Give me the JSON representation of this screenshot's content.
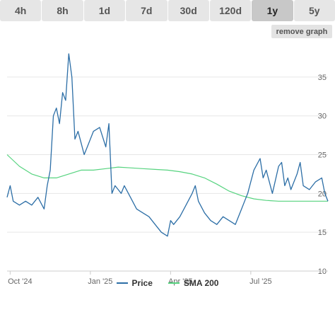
{
  "range_tabs": [
    "4h",
    "8h",
    "1d",
    "7d",
    "30d",
    "120d",
    "1y",
    "5y"
  ],
  "active_tab": "1y",
  "remove_graph_label": "remove graph",
  "colors": {
    "price": "#2c6ea6",
    "sma": "#56d37f",
    "grid": "#e6e6e6"
  },
  "chart_data": {
    "type": "line",
    "x_tick_labels": [
      "Oct '24",
      "Jan '25",
      "Apr '25",
      "Jul '25"
    ],
    "y_tick_labels": [
      "10",
      "15",
      "20",
      "25",
      "30",
      "35"
    ],
    "ylim": [
      10,
      39
    ],
    "xlim": [
      0,
      52
    ],
    "x_tick_weeks": [
      0.5,
      13.5,
      26.5,
      39.5
    ],
    "y_ticks": [
      10,
      15,
      20,
      25,
      30,
      35
    ],
    "grid": true,
    "legend_position": "bottom",
    "series": [
      {
        "name": "Price",
        "x": [
          0,
          0.5,
          1,
          2,
          3,
          4,
          5,
          6,
          6.5,
          7,
          7.5,
          8,
          8.5,
          9,
          9.5,
          10,
          10.5,
          11,
          11.5,
          12,
          12.5,
          13,
          14,
          15,
          16,
          16.5,
          17,
          17.5,
          18,
          18.5,
          19,
          20,
          21,
          22,
          23,
          24,
          25,
          26,
          26.5,
          27,
          28,
          29,
          30,
          30.5,
          31,
          32,
          33,
          34,
          35,
          36,
          37,
          38,
          38.5,
          39,
          40,
          41,
          41.5,
          42,
          43,
          44,
          44.5,
          45,
          45.5,
          46,
          47,
          47.5,
          48,
          49,
          50,
          51,
          51.5,
          52
        ],
        "y": [
          19.5,
          21,
          19,
          18.5,
          19,
          18.5,
          19.5,
          18,
          21,
          23,
          30,
          31,
          29,
          33,
          32,
          38,
          35,
          27,
          28,
          26.5,
          25,
          26,
          28,
          28.5,
          26,
          29,
          20,
          21,
          20.5,
          20,
          21,
          19.5,
          18,
          17.5,
          17,
          16,
          15,
          14.5,
          16.5,
          16,
          17,
          18.5,
          20,
          21,
          19,
          17.5,
          16.5,
          16,
          17,
          16.5,
          16,
          18,
          19,
          20,
          23,
          24.5,
          22,
          23,
          20,
          23.5,
          24,
          21,
          22,
          20.5,
          22.5,
          24,
          21,
          20.5,
          21.5,
          22,
          20,
          19
        ]
      },
      {
        "name": "SMA 200",
        "x": [
          0,
          2,
          4,
          6,
          8,
          10,
          12,
          14,
          16,
          18,
          20,
          22,
          24,
          26,
          28,
          30,
          32,
          34,
          36,
          38,
          40,
          42,
          44,
          46,
          48,
          50,
          52
        ],
        "y": [
          25,
          23.5,
          22.5,
          22,
          22,
          22.5,
          23,
          23,
          23.2,
          23.4,
          23.3,
          23.2,
          23.1,
          23,
          22.8,
          22.5,
          22,
          21.2,
          20.3,
          19.7,
          19.3,
          19.1,
          19,
          19,
          19,
          19,
          19
        ]
      }
    ]
  }
}
